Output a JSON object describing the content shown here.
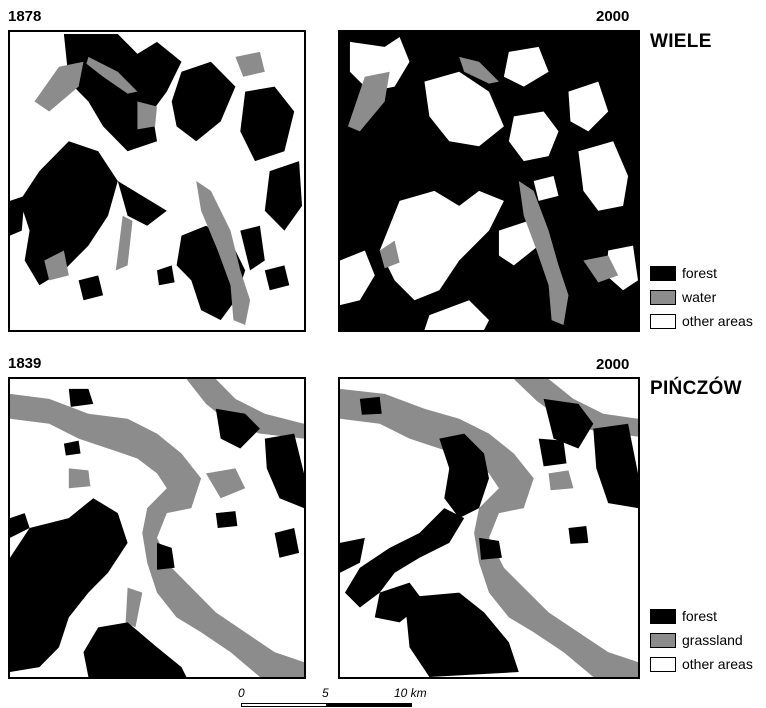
{
  "regions": [
    {
      "name": "WIELE",
      "years": [
        "1878",
        "2000"
      ],
      "legend": [
        {
          "label": "forest",
          "color": "#000000"
        },
        {
          "label": "water",
          "color": "#8c8c8c"
        },
        {
          "label": "other areas",
          "color": "#ffffff"
        }
      ]
    },
    {
      "name": "PIŃCZÓW",
      "years": [
        "1839",
        "2000"
      ],
      "legend": [
        {
          "label": "forest",
          "color": "#000000"
        },
        {
          "label": "grassland",
          "color": "#8c8c8c"
        },
        {
          "label": "other areas",
          "color": "#ffffff"
        }
      ]
    }
  ],
  "scale_bar": {
    "ticks": [
      "0",
      "5",
      "10 km"
    ]
  }
}
